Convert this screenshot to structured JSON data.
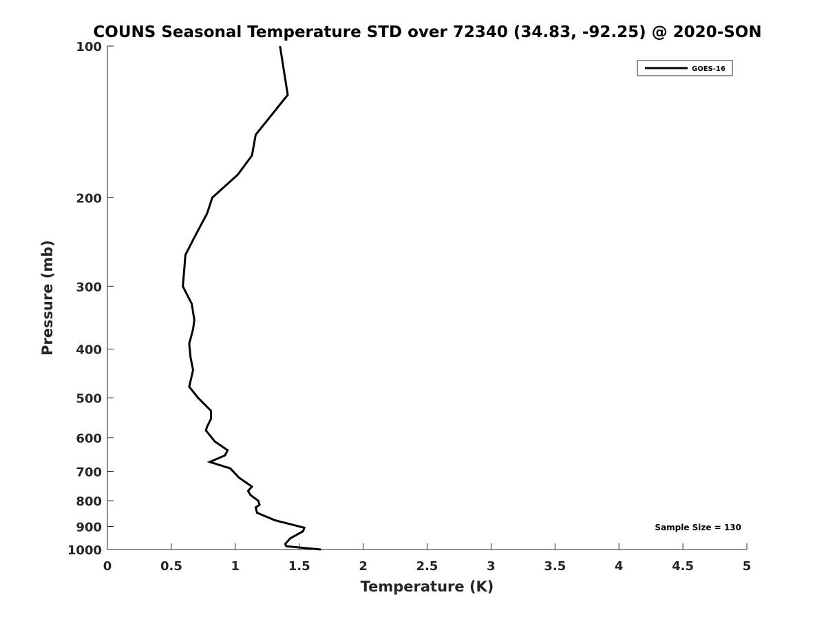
{
  "chart_data": {
    "type": "line",
    "title": "COUNS Seasonal Temperature STD over 72340 (34.83, -92.25) @ 2020-SON",
    "xlabel": "Temperature (K)",
    "ylabel": "Pressure (mb)",
    "xlim": [
      0,
      5
    ],
    "ylim": [
      100,
      1000
    ],
    "y_scale": "log",
    "y_reversed": true,
    "grid": false,
    "legend_position": "top-right",
    "x_ticks": [
      0,
      0.5,
      1,
      1.5,
      2,
      2.5,
      3,
      3.5,
      4,
      4.5,
      5
    ],
    "x_tick_labels": [
      "0",
      "0.5",
      "1",
      "1.5",
      "2",
      "2.5",
      "3",
      "3.5",
      "4",
      "4.5",
      "5"
    ],
    "y_ticks": [
      100,
      200,
      300,
      400,
      500,
      600,
      700,
      800,
      900,
      1000
    ],
    "y_tick_labels": [
      "100",
      "200",
      "300",
      "400",
      "500",
      "600",
      "700",
      "800",
      "900",
      "1000"
    ],
    "annotation": "Sample Size = 130",
    "series": [
      {
        "name": "GOES-16",
        "color": "#000000",
        "points": [
          [
            1.35,
            100
          ],
          [
            1.41,
            125
          ],
          [
            1.16,
            150
          ],
          [
            1.13,
            165
          ],
          [
            1.02,
            180
          ],
          [
            0.82,
            200
          ],
          [
            0.78,
            215
          ],
          [
            0.68,
            240
          ],
          [
            0.61,
            260
          ],
          [
            0.6,
            280
          ],
          [
            0.59,
            300
          ],
          [
            0.66,
            325
          ],
          [
            0.68,
            350
          ],
          [
            0.67,
            365
          ],
          [
            0.64,
            390
          ],
          [
            0.65,
            415
          ],
          [
            0.67,
            440
          ],
          [
            0.64,
            475
          ],
          [
            0.71,
            500
          ],
          [
            0.81,
            530
          ],
          [
            0.81,
            550
          ],
          [
            0.78,
            570
          ],
          [
            0.77,
            580
          ],
          [
            0.84,
            610
          ],
          [
            0.94,
            635
          ],
          [
            0.92,
            650
          ],
          [
            0.8,
            670
          ],
          [
            0.96,
            690
          ],
          [
            1.03,
            720
          ],
          [
            1.13,
            750
          ],
          [
            1.1,
            765
          ],
          [
            1.12,
            780
          ],
          [
            1.18,
            800
          ],
          [
            1.19,
            815
          ],
          [
            1.16,
            825
          ],
          [
            1.17,
            845
          ],
          [
            1.31,
            875
          ],
          [
            1.54,
            905
          ],
          [
            1.53,
            920
          ],
          [
            1.43,
            950
          ],
          [
            1.39,
            975
          ],
          [
            1.4,
            985
          ],
          [
            1.67,
            1000
          ]
        ]
      }
    ]
  }
}
